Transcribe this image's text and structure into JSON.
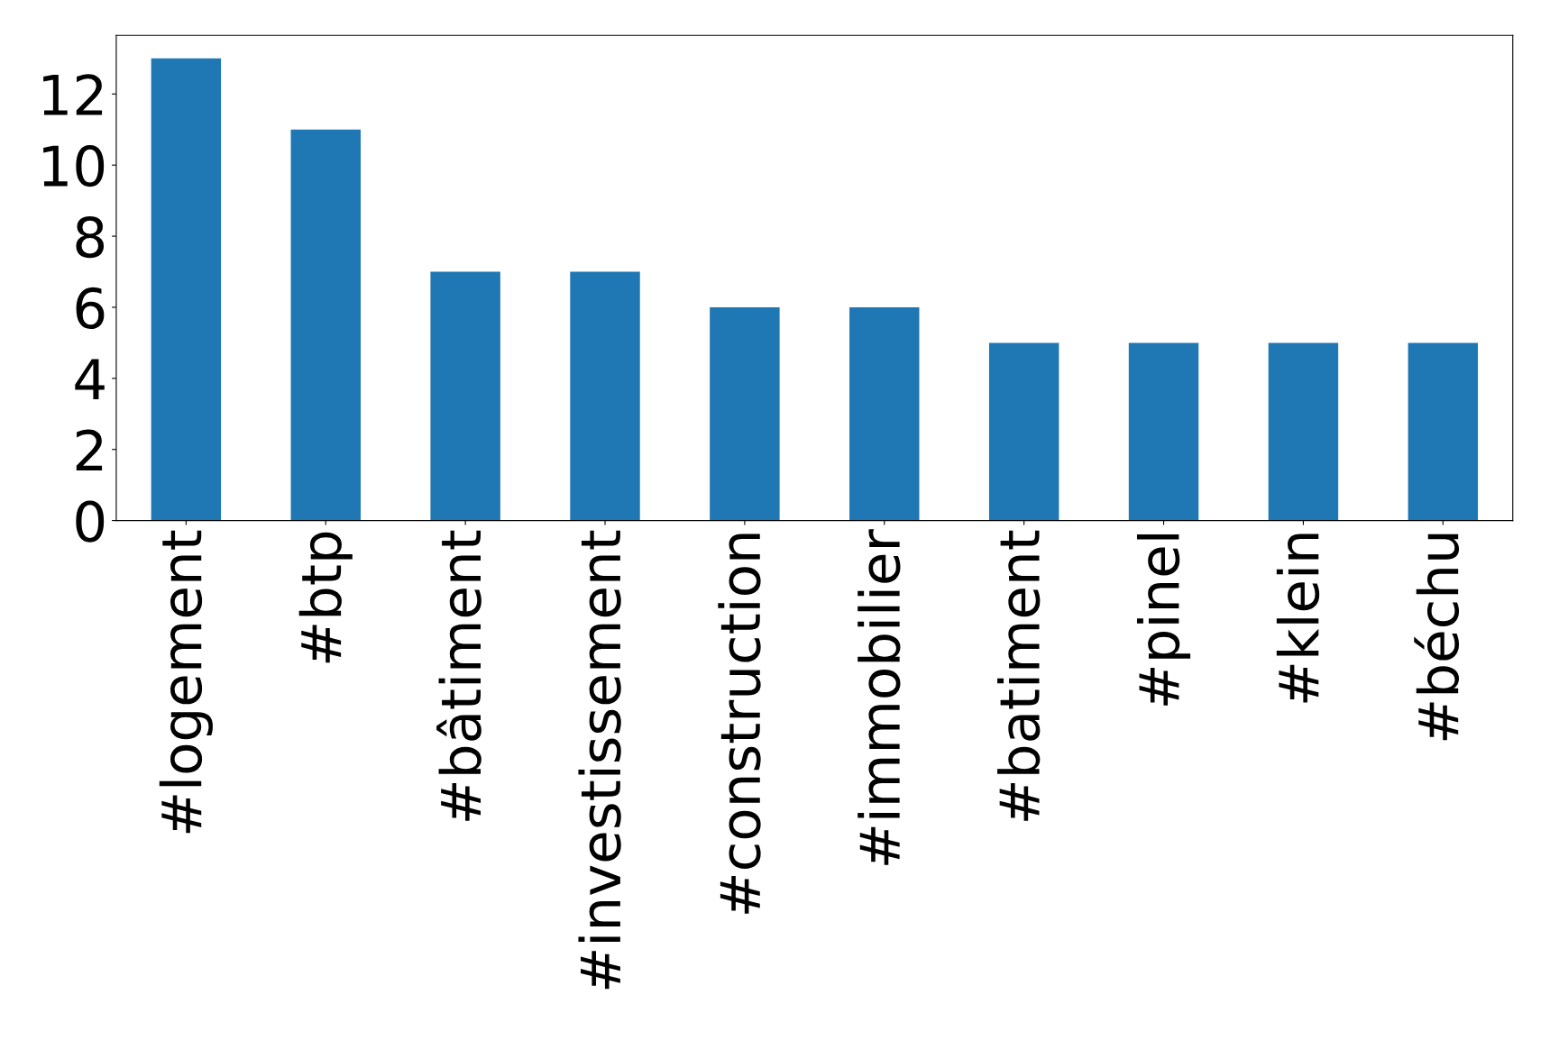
{
  "chart_data": {
    "type": "bar",
    "categories": [
      "#logement",
      "#btp",
      "#bâtiment",
      "#investissement",
      "#construction",
      "#immobilier",
      "#batiment",
      "#pinel",
      "#klein",
      "#béchu"
    ],
    "values": [
      13,
      11,
      7,
      7,
      6,
      6,
      5,
      5,
      5,
      5
    ],
    "color": "#1f77b4",
    "ylim": [
      0,
      13.65
    ],
    "yticks": [
      0,
      2,
      4,
      6,
      8,
      10,
      12
    ],
    "grid": false,
    "legend": false
  }
}
